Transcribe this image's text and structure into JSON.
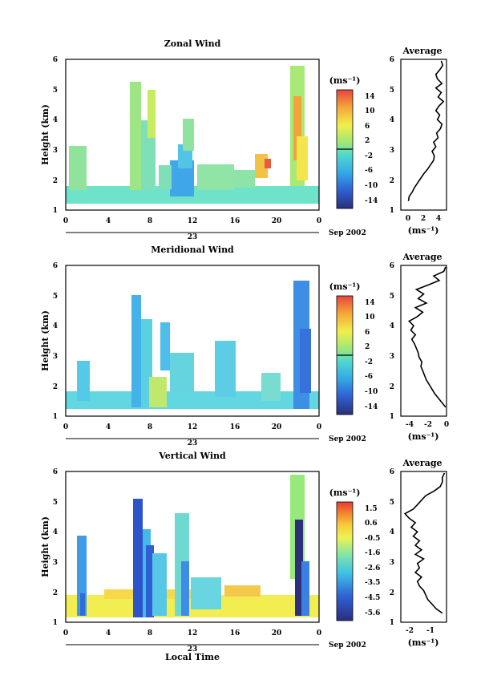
{
  "figure": {
    "date_label": "Sep 2002",
    "day_label": "23",
    "xlabel": "Local Time",
    "ylabel": "Height (km)",
    "unit_label": "(ms⁻¹)",
    "avg_title": "Average"
  },
  "chart_data": [
    {
      "type": "heatmap",
      "title": "Zonal Wind",
      "xlabel": "",
      "ylabel": "Height (km)",
      "xticks": [
        "0",
        "4",
        "8",
        "12",
        "16",
        "20",
        "0"
      ],
      "yticks": [
        "1",
        "2",
        "3",
        "4",
        "5",
        "6"
      ],
      "xlim": [
        0,
        24
      ],
      "ylim": [
        1,
        6
      ],
      "colorbar": {
        "label": "(ms⁻¹)",
        "ticks": [
          "14",
          "10",
          "6",
          "2",
          "-2",
          "-6",
          "-10",
          "-14"
        ],
        "range": [
          -16,
          16
        ],
        "zero_line": true
      },
      "sampled_values": [
        {
          "time": 0.7,
          "height_min": 1.3,
          "height_max": 2.0,
          "value": 1
        },
        {
          "time": 1.3,
          "height_min": 1.3,
          "height_max": 3.0,
          "value": 0
        },
        {
          "time": 6.3,
          "height_min": 1.3,
          "height_max": 5.4,
          "value": 3
        },
        {
          "time": 7.7,
          "height_min": 1.3,
          "height_max": 5.1,
          "value": 5
        },
        {
          "time": 8.3,
          "height_min": 1.3,
          "height_max": 4.7,
          "value": 6
        },
        {
          "time": 10.7,
          "height_min": 1.3,
          "height_max": 3.0,
          "value": -6
        },
        {
          "time": 11.3,
          "height_min": 1.3,
          "height_max": 3.7,
          "value": -3
        },
        {
          "time": 17.5,
          "height_min": 1.3,
          "height_max": 2.2,
          "value": 1
        },
        {
          "time": 20.3,
          "height_min": 1.3,
          "height_max": 2.5,
          "value": 9
        },
        {
          "time": 22.3,
          "height_min": 1.5,
          "height_max": 5.8,
          "value": 6
        }
      ]
    },
    {
      "type": "line",
      "title": "Average",
      "xlabel": "(ms⁻¹)",
      "xticks": [
        "0",
        "2",
        "4"
      ],
      "yticks": [
        "1",
        "2",
        "3",
        "4",
        "5",
        "6"
      ],
      "xlim": [
        -1,
        5
      ],
      "ylim": [
        1,
        6
      ],
      "series": [
        {
          "x": [
            0.0,
            0.1,
            0.5,
            0.8,
            1.2,
            1.6,
            2.0,
            2.5,
            2.9,
            3.3,
            3.4,
            3.1,
            3.6,
            3.3,
            3.9,
            3.7,
            4.2,
            4.4,
            3.8,
            4.1,
            3.6,
            4.0,
            4.6,
            3.9,
            4.3,
            3.6,
            4.4,
            3.8,
            3.6,
            4.1,
            4.5,
            4.3
          ],
          "y": [
            1.3,
            1.45,
            1.6,
            1.75,
            1.9,
            2.05,
            2.2,
            2.35,
            2.5,
            2.65,
            2.8,
            2.95,
            3.1,
            3.25,
            3.4,
            3.55,
            3.7,
            3.85,
            4.0,
            4.15,
            4.3,
            4.45,
            4.6,
            4.75,
            4.9,
            5.05,
            5.2,
            5.35,
            5.5,
            5.65,
            5.8,
            5.95
          ]
        }
      ]
    },
    {
      "type": "heatmap",
      "title": "Meridional Wind",
      "xlabel": "",
      "ylabel": "Height (km)",
      "xticks": [
        "0",
        "4",
        "8",
        "12",
        "16",
        "20",
        "0"
      ],
      "yticks": [
        "1",
        "2",
        "3",
        "4",
        "5",
        "6"
      ],
      "xlim": [
        0,
        24
      ],
      "ylim": [
        1,
        6
      ],
      "colorbar": {
        "label": "(ms⁻¹)",
        "ticks": [
          "14",
          "10",
          "6",
          "2",
          "-2",
          "-6",
          "-10",
          "-14"
        ],
        "range": [
          -16,
          16
        ],
        "zero_line": true
      },
      "sampled_values": [
        {
          "time": 1.3,
          "height_min": 1.3,
          "height_max": 3.0,
          "value": -2
        },
        {
          "time": 6.7,
          "height_min": 1.3,
          "height_max": 5.2,
          "value": -4
        },
        {
          "time": 7.7,
          "height_min": 1.3,
          "height_max": 4.6,
          "value": -3
        },
        {
          "time": 8.3,
          "height_min": 1.3,
          "height_max": 3.5,
          "value": 0
        },
        {
          "time": 10.5,
          "height_min": 1.3,
          "height_max": 3.0,
          "value": -3
        },
        {
          "time": 15.3,
          "height_min": 1.3,
          "height_max": 2.8,
          "value": -2
        },
        {
          "time": 22.5,
          "height_min": 1.3,
          "height_max": 5.6,
          "value": -7
        }
      ]
    },
    {
      "type": "line",
      "title": "Average",
      "xlabel": "(ms⁻¹)",
      "xticks": [
        "-4",
        "-2",
        "0"
      ],
      "yticks": [
        "1",
        "2",
        "3",
        "4",
        "5",
        "6"
      ],
      "xlim": [
        -5,
        0
      ],
      "ylim": [
        1,
        6
      ],
      "series": [
        {
          "x": [
            -0.1,
            -0.5,
            -0.9,
            -1.3,
            -1.6,
            -1.9,
            -2.2,
            -2.4,
            -2.6,
            -2.8,
            -2.7,
            -3.0,
            -3.1,
            -3.3,
            -3.5,
            -3.8,
            -3.4,
            -3.9,
            -3.6,
            -4.1,
            -3.2,
            -2.6,
            -3.4,
            -2.2,
            -3.1,
            -2.5,
            -3.3,
            -2.0,
            -0.8,
            -1.4,
            -0.3,
            -0.1
          ],
          "y": [
            1.3,
            1.45,
            1.6,
            1.75,
            1.9,
            2.05,
            2.2,
            2.35,
            2.5,
            2.65,
            2.8,
            2.95,
            3.1,
            3.25,
            3.4,
            3.55,
            3.7,
            3.85,
            4.0,
            4.15,
            4.3,
            4.45,
            4.6,
            4.75,
            4.9,
            5.05,
            5.2,
            5.35,
            5.5,
            5.65,
            5.8,
            5.95
          ]
        }
      ]
    },
    {
      "type": "heatmap",
      "title": "Vertical Wind",
      "xlabel": "Local Time",
      "ylabel": "Height (km)",
      "xticks": [
        "0",
        "4",
        "8",
        "12",
        "16",
        "20",
        "0"
      ],
      "yticks": [
        "1",
        "2",
        "3",
        "4",
        "5",
        "6"
      ],
      "xlim": [
        0,
        24
      ],
      "ylim": [
        1,
        6
      ],
      "colorbar": {
        "label": "(ms⁻¹)",
        "ticks": [
          "1.5",
          "0.6",
          "-0.5",
          "-1.6",
          "-2.6",
          "-3.5",
          "-4.5",
          "-5.6"
        ],
        "range": [
          -6.0,
          2.0
        ],
        "zero_line": false
      },
      "sampled_values": [
        {
          "time": 1.3,
          "height_min": 1.3,
          "height_max": 3.2,
          "value": -3.5
        },
        {
          "time": 6.5,
          "height_min": 1.3,
          "height_max": 5.0,
          "value": -5.0
        },
        {
          "time": 7.7,
          "height_min": 1.3,
          "height_max": 4.8,
          "value": -4.5
        },
        {
          "time": 8.5,
          "height_min": 1.3,
          "height_max": 3.5,
          "value": -3.0
        },
        {
          "time": 11.3,
          "height_min": 1.3,
          "height_max": 4.4,
          "value": -2.5
        },
        {
          "time": 22.2,
          "height_min": 1.3,
          "height_max": 4.4,
          "value": -5.6
        },
        {
          "time": 22.6,
          "height_min": 3.0,
          "height_max": 6.0,
          "value": -0.5
        },
        {
          "time": 12.0,
          "height_min": 1.3,
          "height_max": 1.8,
          "value": 0.6
        }
      ]
    },
    {
      "type": "line",
      "title": "Average",
      "xlabel": "(ms⁻¹)",
      "xticks": [
        "-2",
        "-1"
      ],
      "yticks": [
        "1",
        "2",
        "3",
        "4",
        "5",
        "6"
      ],
      "xlim": [
        -2.6,
        -0.4
      ],
      "ylim": [
        1,
        6
      ],
      "series": [
        {
          "x": [
            -0.6,
            -0.9,
            -1.1,
            -1.3,
            -1.4,
            -1.5,
            -1.7,
            -1.8,
            -1.6,
            -1.9,
            -1.7,
            -1.8,
            -1.5,
            -1.9,
            -1.6,
            -1.9,
            -1.7,
            -2.0,
            -1.8,
            -2.1,
            -1.9,
            -2.2,
            -2.4,
            -2.0,
            -1.8,
            -1.6,
            -1.4,
            -1.0,
            -0.7,
            -0.6,
            -0.6,
            -0.5
          ],
          "y": [
            1.3,
            1.45,
            1.6,
            1.75,
            1.9,
            2.05,
            2.2,
            2.35,
            2.5,
            2.65,
            2.8,
            2.95,
            3.1,
            3.25,
            3.4,
            3.55,
            3.7,
            3.85,
            4.0,
            4.15,
            4.3,
            4.45,
            4.6,
            4.75,
            4.9,
            5.05,
            5.2,
            5.35,
            5.5,
            5.65,
            5.8,
            5.95
          ]
        }
      ]
    }
  ]
}
